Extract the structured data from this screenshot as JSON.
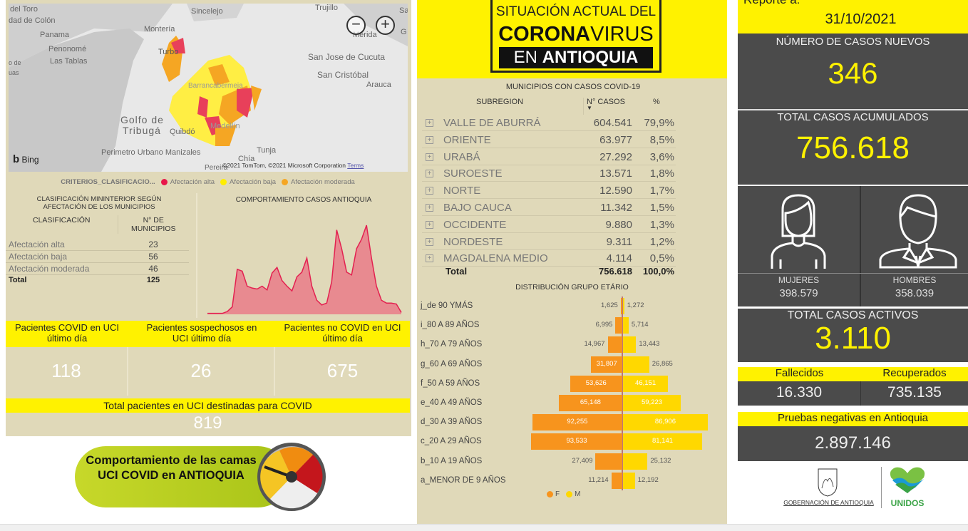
{
  "map": {
    "labels": [
      "del Toro",
      "dad de Colón",
      "Panama",
      "Penonomé",
      "Las Tablas",
      "o de",
      "uas",
      "Montería",
      "Turbo",
      "Sincelejo",
      "Trujillo",
      "Sa",
      "Mérida",
      "G",
      "San Jose de Cucuta",
      "San Cristóbal",
      "Arauca",
      "Barrancabermeja",
      "Golfo de",
      "Tribugá",
      "Quibdó",
      "Medellín",
      "Perimetro Urbano Manizales",
      "Tunja",
      "Chía",
      "Pereira"
    ],
    "zoom_out": "−",
    "zoom_in": "+",
    "bing": "Bing",
    "copyright": "©2021 TomTom, ©2021 Microsoft Corporation",
    "terms": "Terms"
  },
  "legend": {
    "title": "CRITERIOS_CLASIFICACIO...",
    "items": [
      {
        "label": "Afectación alta",
        "color": "#e8174a"
      },
      {
        "label": "Afectación baja",
        "color": "#ffee00"
      },
      {
        "label": "Afectación moderada",
        "color": "#f5a623"
      }
    ]
  },
  "classification": {
    "title": "CLASIFICACIÓN MININTERIOR SEGÚN AFECTACIÓN DE LOS MUNICIPIOS",
    "col1": "CLASIFICACIÓN",
    "col2": "N° DE MUNICIPIOS",
    "rows": [
      {
        "label": "Afectación alta",
        "value": "23"
      },
      {
        "label": "Afectación baja",
        "value": "56"
      },
      {
        "label": "Afectación moderada",
        "value": "46"
      }
    ],
    "total_label": "Total",
    "total_value": "125"
  },
  "trend_chart": {
    "title": "COMPORTAMIENTO CASOS ANTIOQUIA"
  },
  "chart_data": [
    {
      "type": "area",
      "title": "COMPORTAMIENTO CASOS ANTIOQUIA",
      "color": "#e8405a",
      "values": [
        1,
        1,
        1,
        1,
        3,
        8,
        48,
        46,
        30,
        28,
        27,
        30,
        26,
        44,
        50,
        36,
        30,
        25,
        40,
        45,
        60,
        30,
        15,
        10,
        12,
        35,
        90,
        70,
        45,
        42,
        70,
        80,
        95,
        60,
        30,
        15,
        12,
        12,
        11,
        2
      ]
    },
    {
      "type": "bar",
      "title": "DISTRIBUCIÓN GRUPO ETÁRIO",
      "orientation": "horizontal-pyramid",
      "categories": [
        "j_de 90 YMÁS",
        "i_80 A 89 AÑOS",
        "h_70 A 79 AÑOS",
        "g_60 A 69 AÑOS",
        "f_50 A 59 AÑOS",
        "e_40 A 49 AÑOS",
        "d_30 A 39 AÑOS",
        "c_20 A 29 AÑOS",
        "b_10 A 19 AÑOS",
        "a_MENOR DE 9 AÑOS"
      ],
      "series": [
        {
          "name": "F",
          "color": "#f7941d",
          "values": [
            1625,
            6995,
            14967,
            31807,
            53626,
            65148,
            92255,
            93533,
            27409,
            11214
          ],
          "labels": [
            "1,625",
            "6,995",
            "14,967",
            "31,807",
            "53,626",
            "65,148",
            "92,255",
            "93,533",
            "27,409",
            "11,214"
          ]
        },
        {
          "name": "M",
          "color": "#ffd800",
          "values": [
            1272,
            5714,
            13443,
            26865,
            46151,
            59223,
            86906,
            81141,
            25132,
            12192
          ],
          "labels": [
            "1,272",
            "5,714",
            "13,443",
            "26,865",
            "46,151",
            "59,223",
            "86,906",
            "81,141",
            "25,132",
            "12,192"
          ]
        }
      ],
      "legend": "bottom"
    }
  ],
  "uci": {
    "headers": [
      "Pacientes COVID en UCI último día",
      "Pacientes sospechosos en UCI último día",
      "Pacientes no COVID en UCI último día"
    ],
    "values": [
      "118",
      "26",
      "675"
    ],
    "total_label": "Total pacientes en UCI destinadas para COVID",
    "total_value": "819"
  },
  "uci_button": {
    "label": "Comportamiento de las camas UCI COVID en ANTIOQUIA"
  },
  "banner": {
    "line1": "SITUACIÓN ACTUAL DEL",
    "line2a": "CORONA",
    "line2b": "VIRUS",
    "line3a": "EN ",
    "line3b": "ANTIOQUIA"
  },
  "subregions": {
    "title": "MUNICIPIOS CON CASOS COVID-19",
    "col_subregion": "SUBREGION",
    "col_cases": "N° CASOS",
    "col_pct": "%",
    "rows": [
      {
        "name": "VALLE DE ABURRÁ",
        "cases": "604.541",
        "pct": "79,9%"
      },
      {
        "name": "ORIENTE",
        "cases": "63.977",
        "pct": "8,5%"
      },
      {
        "name": "URABÁ",
        "cases": "27.292",
        "pct": "3,6%"
      },
      {
        "name": "SUROESTE",
        "cases": "13.571",
        "pct": "1,8%"
      },
      {
        "name": "NORTE",
        "cases": "12.590",
        "pct": "1,7%"
      },
      {
        "name": "BAJO CAUCA",
        "cases": "11.342",
        "pct": "1,5%"
      },
      {
        "name": "OCCIDENTE",
        "cases": "9.880",
        "pct": "1,3%"
      },
      {
        "name": "NORDESTE",
        "cases": "9.311",
        "pct": "1,2%"
      },
      {
        "name": "MAGDALENA MEDIO",
        "cases": "4.114",
        "pct": "0,5%"
      }
    ],
    "total_label": "Total",
    "total_cases": "756.618",
    "total_pct": "100,0%"
  },
  "pyramid": {
    "title": "DISTRIBUCIÓN GRUPO ETÁRIO"
  },
  "report": {
    "label": "Reporte a:",
    "date": "31/10/2021"
  },
  "stats": {
    "new_cases_label": "NÚMERO DE CASOS NUEVOS",
    "new_cases": "346",
    "total_label": "TOTAL CASOS ACUMULADOS",
    "total": "756.618",
    "women_label": "MUJERES",
    "women": "398.579",
    "men_label": "HOMBRES",
    "men": "358.039",
    "active_label": "TOTAL CASOS ACTIVOS",
    "active": "3.110",
    "deaths_label": "Fallecidos",
    "deaths": "16.330",
    "recovered_label": "Recuperados",
    "recovered": "735.135",
    "negative_label": "Pruebas negativas en Antioquia",
    "negative": "2.897.146"
  },
  "logos": {
    "gov": "GOBERNACIÓN DE ANTIOQUIA",
    "unidos": "UNIDOS"
  }
}
